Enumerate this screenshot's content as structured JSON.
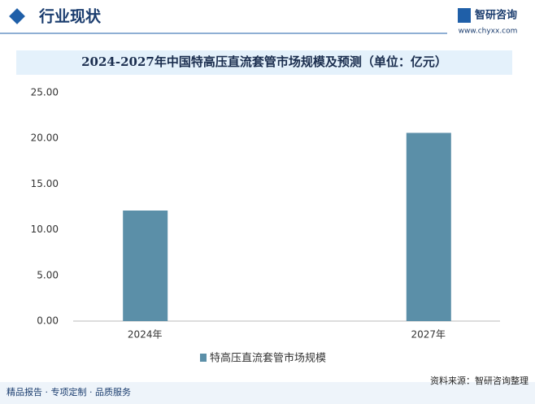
{
  "header": {
    "title": "行业现状",
    "logo": "智研咨询",
    "url": "www.chyxx.com"
  },
  "chart_data": {
    "type": "bar",
    "title": "2024-2027年中国特高压直流套管市场规模及预测（单位：亿元）",
    "categories": [
      "2024年",
      "2027年"
    ],
    "series": [
      {
        "name": "特高压直流套管市场规模",
        "color": "#5b8fa8",
        "values": [
          12.1,
          20.6
        ]
      }
    ],
    "ylim": [
      0,
      25
    ],
    "yticks": [
      {
        "value": 0,
        "label": "0.00"
      },
      {
        "value": 5,
        "label": "5.00"
      },
      {
        "value": 10,
        "label": "10.00"
      },
      {
        "value": 15,
        "label": "15.00"
      },
      {
        "value": 20,
        "label": "20.00"
      },
      {
        "value": 25,
        "label": "25.00"
      }
    ],
    "grid": false
  },
  "footer": {
    "left": "精品报告 · 专项定制 · 品质服务",
    "source": "资料来源：智研咨询整理"
  }
}
